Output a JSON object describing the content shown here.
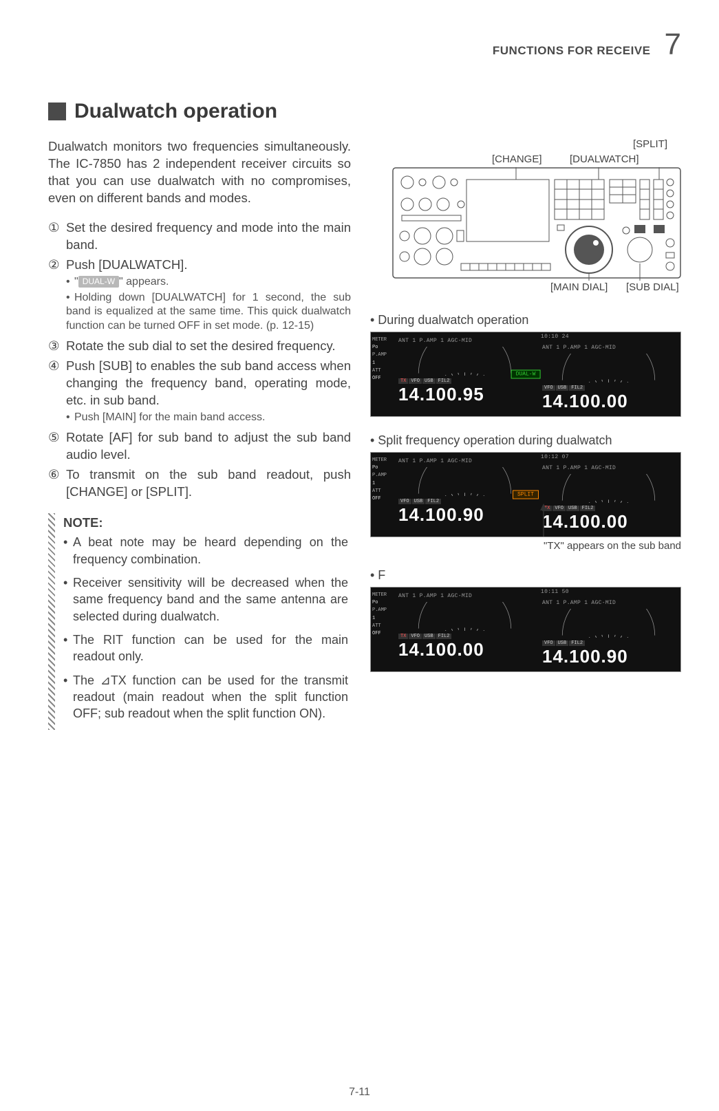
{
  "header": {
    "section": "FUNCTIONS FOR RECEIVE",
    "chapter": "7"
  },
  "title": "Dualwatch operation",
  "intro": "Dualwatch monitors two frequencies simultaneously. The IC-7850 has 2 independent receiver circuits so that you can use dualwatch with no compromises, even on different bands and modes.",
  "steps": [
    {
      "n": "①",
      "t": "Set the desired frequency and mode into the main band."
    },
    {
      "n": "②",
      "t": "Push [DUALWATCH].",
      "sub": [
        "\" \" appears.",
        "Holding down [DUALWATCH] for 1 second, the sub band is equalized at the same time. This quick dualwatch function can be turned OFF in set mode. (p. 12-15)"
      ],
      "badge": "DUAL-W"
    },
    {
      "n": "③",
      "t": "Rotate the sub dial to set the desired frequency."
    },
    {
      "n": "④",
      "t": "Push [SUB] to enables the sub band access when changing the frequency band, operating mode, etc. in sub band.",
      "sub": [
        "Push [MAIN] for the main band access."
      ]
    },
    {
      "n": "⑤",
      "t": "Rotate [AF] for sub band to adjust the sub band audio level."
    },
    {
      "n": "⑥",
      "t": "To transmit on the sub band readout, push [CHANGE] or [SPLIT]."
    }
  ],
  "note": {
    "head": "NOTE:",
    "items": [
      "A beat note may be heard depending on the frequency combination.",
      "Receiver sensitivity will be decreased when the same frequency band and the same antenna are selected during dualwatch.",
      "The RIT function can be used for the main readout only.",
      "The ⊿TX function can be used for the transmit readout (main readout when the split function OFF; sub readout when the split function ON)."
    ]
  },
  "diagram_labels": {
    "change": "[CHANGE]",
    "dualwatch": "[DUALWATCH]",
    "split": "[SPLIT]",
    "main_dial": "[MAIN DIAL]",
    "sub_dial": "[SUB DIAL]"
  },
  "screens": [
    {
      "caption": "• During dualwatch operation",
      "left_freq": "14.100.95",
      "right_freq": "14.100.00",
      "left_tags": [
        "TX",
        "VFO",
        "USB",
        "FIL2"
      ],
      "right_tags": [
        "VFO",
        "USB",
        "FIL2"
      ],
      "center_badge": "DUAL-W",
      "center_color": "green",
      "left_top": "ANT 1   P.AMP 1           AGC-MID",
      "right_top": "ANT 1      P.AMP 1      AGC-MID",
      "clock": "10:10 24"
    },
    {
      "caption": "• Split frequency operation during dualwatch",
      "left_freq": "14.100.90",
      "right_freq": "14.100.00",
      "left_tags": [
        "VFO",
        "USB",
        "FIL2"
      ],
      "right_tags": [
        "TX",
        "VFO",
        "USB",
        "FIL2"
      ],
      "center_badge": "SPLIT",
      "center_color": "orange",
      "left_top": "ANT 1   P.AMP 1           AGC-MID",
      "right_top": "ANT 1      P.AMP 1      AGC-MID",
      "clock": "10:12 07",
      "note": "\"TX\" appears on the sub band"
    },
    {
      "caption": "• F",
      "left_freq": "14.100.00",
      "right_freq": "14.100.90",
      "left_tags": [
        "TX",
        "VFO",
        "USB",
        "FIL2"
      ],
      "right_tags": [
        "VFO",
        "USB",
        "FIL2"
      ],
      "center_badge": "",
      "center_color": "none",
      "left_top": "ANT 1   P.AMP 1           AGC-MID",
      "right_top": "ANT 1      P.AMP 1      AGC-MID",
      "clock": "10:11 50"
    }
  ],
  "side_labels": [
    "METER",
    "P.AMP",
    "ATT"
  ],
  "side_vals": [
    "Po",
    "1",
    "OFF"
  ],
  "footer": "7-11"
}
